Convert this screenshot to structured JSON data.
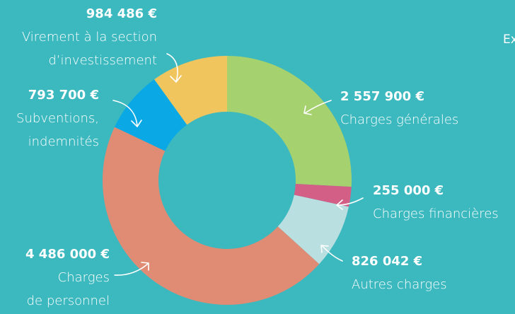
{
  "chart_data": {
    "type": "donut",
    "annotation": "Ex",
    "categories": [
      "Charges générales",
      "Charges financières",
      "Autres charges",
      "Charges\nde personnel",
      "Subventions,\nindemnités",
      "Virement à la section\nd’investissement"
    ],
    "values": [
      2557900,
      255000,
      826042,
      4486000,
      793700,
      984486
    ],
    "value_labels": [
      "2 557 900 €",
      "255 000 €",
      "826 042 €",
      "4 486 000 €",
      "793 700 €",
      "984 486 €"
    ],
    "colors": [
      "#a6d16f",
      "#d45f86",
      "#b9dfe0",
      "#e08b74",
      "#0aa9e5",
      "#f0c55e"
    ]
  }
}
